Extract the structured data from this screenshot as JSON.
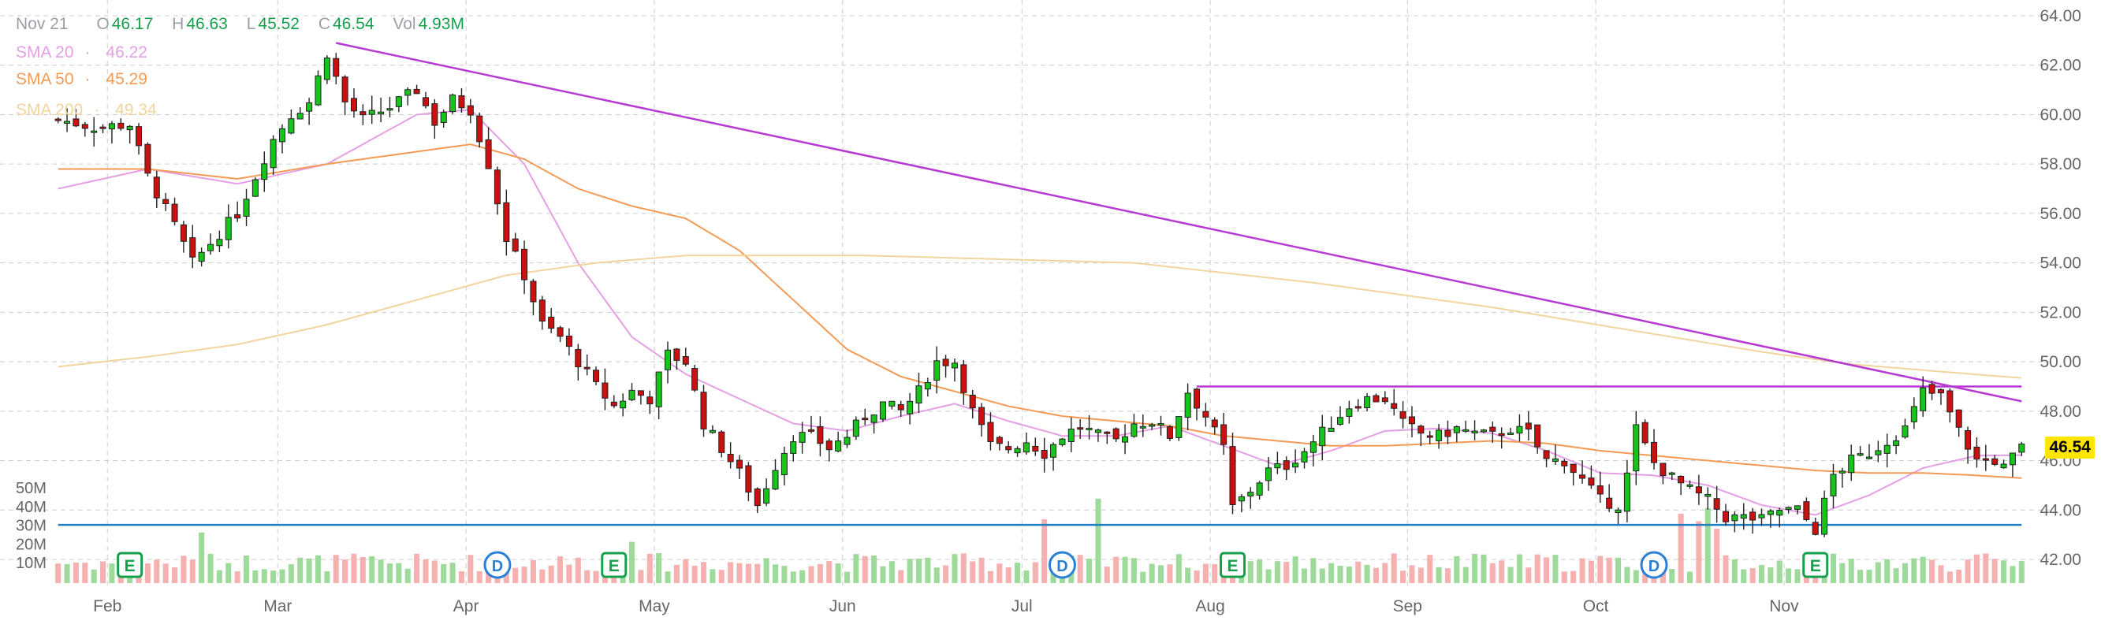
{
  "ohlc": {
    "date": "Nov 21",
    "o_label": "O",
    "o": "46.17",
    "h_label": "H",
    "h": "46.63",
    "l_label": "L",
    "l": "45.52",
    "c_label": "C",
    "c": "46.54",
    "vol_label": "Vol",
    "vol": "4.93M"
  },
  "sma": [
    {
      "label": "SMA 20",
      "value": "46.22",
      "color": "#e59fe4"
    },
    {
      "label": "SMA 50",
      "value": "45.29",
      "color": "#f39b55"
    },
    {
      "label": "SMA 200",
      "value": "49.34",
      "color": "#f2d49e"
    }
  ],
  "last_price": "46.54",
  "colors": {
    "up": "#17c41b",
    "down": "#cc1010",
    "vol_up": "#9edb9b",
    "vol_down": "#f6b0b0",
    "trend": "#b73ad3",
    "support": "#1e7dc2",
    "earn": "#17a04b",
    "div": "#2a7fd8",
    "grid": "#cccccc"
  },
  "chart_data": {
    "type": "candlestick",
    "y_ticks": [
      "64.00",
      "62.00",
      "60.00",
      "58.00",
      "56.00",
      "54.00",
      "52.00",
      "50.00",
      "48.00",
      "46.00",
      "44.00",
      "42.00"
    ],
    "ylim": [
      42,
      64
    ],
    "volume_ticks": [
      "50M",
      "40M",
      "30M",
      "20M",
      "10M"
    ],
    "x_months": [
      "Feb",
      "Mar",
      "Apr",
      "May",
      "Jun",
      "Jul",
      "Aug",
      "Sep",
      "Oct",
      "Nov"
    ],
    "n_bars": 220,
    "month_start_index": [
      6,
      25,
      46,
      67,
      88,
      108,
      129,
      151,
      172,
      193
    ],
    "events": [
      {
        "type": "E",
        "index": 8
      },
      {
        "type": "D",
        "index": 49
      },
      {
        "type": "E",
        "index": 62
      },
      {
        "type": "D",
        "index": 112
      },
      {
        "type": "E",
        "index": 131
      },
      {
        "type": "D",
        "index": 178
      },
      {
        "type": "E",
        "index": 196
      }
    ],
    "anchors": [
      [
        0,
        59.8
      ],
      [
        4,
        59.5
      ],
      [
        8,
        59.6
      ],
      [
        10,
        57.5
      ],
      [
        13,
        55.5
      ],
      [
        15,
        54
      ],
      [
        18,
        55.2
      ],
      [
        20,
        56
      ],
      [
        22,
        57.5
      ],
      [
        24,
        59
      ],
      [
        26,
        60
      ],
      [
        28,
        60.5
      ],
      [
        30,
        62.5
      ],
      [
        32,
        60.5
      ],
      [
        34,
        59.8
      ],
      [
        37,
        60.3
      ],
      [
        40,
        61
      ],
      [
        42,
        59.7
      ],
      [
        44,
        60.6
      ],
      [
        46,
        60.2
      ],
      [
        48,
        58
      ],
      [
        50,
        55
      ],
      [
        52,
        53.5
      ],
      [
        54,
        51.5
      ],
      [
        56,
        51
      ],
      [
        58,
        50
      ],
      [
        60,
        49
      ],
      [
        62,
        48.2
      ],
      [
        64,
        48.8
      ],
      [
        66,
        48.5
      ],
      [
        68,
        50.3
      ],
      [
        70,
        50
      ],
      [
        72,
        47.5
      ],
      [
        74,
        46.5
      ],
      [
        76,
        45.5
      ],
      [
        78,
        44.2
      ],
      [
        80,
        45.8
      ],
      [
        82,
        47
      ],
      [
        84,
        47
      ],
      [
        86,
        46.5
      ],
      [
        88,
        47
      ],
      [
        90,
        47.8
      ],
      [
        92,
        48.3
      ],
      [
        94,
        48
      ],
      [
        96,
        48.8
      ],
      [
        98,
        50
      ],
      [
        100,
        50
      ],
      [
        102,
        48
      ],
      [
        104,
        46.6
      ],
      [
        106,
        46.5
      ],
      [
        108,
        46.8
      ],
      [
        110,
        46.3
      ],
      [
        112,
        47
      ],
      [
        114,
        47.4
      ],
      [
        116,
        47
      ],
      [
        118,
        46.8
      ],
      [
        120,
        47.5
      ],
      [
        122,
        47.6
      ],
      [
        124,
        47
      ],
      [
        126,
        48.8
      ],
      [
        128,
        47.8
      ],
      [
        130,
        46.5
      ],
      [
        131,
        44.1
      ],
      [
        133,
        44.8
      ],
      [
        135,
        45.6
      ],
      [
        137,
        45.8
      ],
      [
        139,
        46.4
      ],
      [
        142,
        47.5
      ],
      [
        144,
        48.2
      ],
      [
        146,
        48.5
      ],
      [
        148,
        48.5
      ],
      [
        150,
        47.5
      ],
      [
        152,
        47.1
      ],
      [
        154,
        47
      ],
      [
        156,
        47.3
      ],
      [
        158,
        47.1
      ],
      [
        160,
        47
      ],
      [
        162,
        47.3
      ],
      [
        164,
        47.1
      ],
      [
        166,
        46
      ],
      [
        168,
        46
      ],
      [
        170,
        45.2
      ],
      [
        172,
        44.4
      ],
      [
        174,
        44.2
      ],
      [
        175,
        45.4
      ],
      [
        176,
        47.3
      ],
      [
        178,
        45.9
      ],
      [
        180,
        45.3
      ],
      [
        182,
        44.8
      ],
      [
        184,
        44.4
      ],
      [
        186,
        43.7
      ],
      [
        188,
        43.7
      ],
      [
        190,
        43.6
      ],
      [
        192,
        44
      ],
      [
        194,
        44
      ],
      [
        196,
        43.2
      ],
      [
        198,
        45.4
      ],
      [
        200,
        46
      ],
      [
        202,
        46.3
      ],
      [
        204,
        46.8
      ],
      [
        206,
        47.3
      ],
      [
        208,
        48.8
      ],
      [
        210,
        48.6
      ],
      [
        212,
        47.2
      ],
      [
        214,
        46
      ],
      [
        216,
        46
      ],
      [
        217,
        45.7
      ],
      [
        219,
        46.54
      ]
    ],
    "trendlines": [
      {
        "from": [
          31,
          62.9
        ],
        "to": [
          219,
          48.4
        ],
        "color": "trend"
      },
      {
        "from": [
          127,
          49.0
        ],
        "to": [
          219,
          49.0
        ],
        "color": "trend"
      },
      {
        "from": [
          0,
          43.4
        ],
        "to": [
          219,
          43.4
        ],
        "color": "support"
      }
    ],
    "sma_anchors": {
      "sma20": [
        [
          0,
          57
        ],
        [
          10,
          57.8
        ],
        [
          20,
          57.2
        ],
        [
          30,
          58
        ],
        [
          40,
          60
        ],
        [
          46,
          60.2
        ],
        [
          52,
          58
        ],
        [
          58,
          54
        ],
        [
          64,
          51
        ],
        [
          70,
          49.5
        ],
        [
          76,
          48.5
        ],
        [
          82,
          47.5
        ],
        [
          88,
          47.2
        ],
        [
          94,
          47.8
        ],
        [
          100,
          48.3
        ],
        [
          106,
          47.6
        ],
        [
          112,
          47
        ],
        [
          118,
          47
        ],
        [
          124,
          47.4
        ],
        [
          130,
          46.6
        ],
        [
          136,
          45.8
        ],
        [
          142,
          46.4
        ],
        [
          148,
          47.2
        ],
        [
          154,
          47.3
        ],
        [
          160,
          47.1
        ],
        [
          166,
          46.4
        ],
        [
          172,
          45.5
        ],
        [
          178,
          45.4
        ],
        [
          184,
          45
        ],
        [
          190,
          44.2
        ],
        [
          196,
          43.8
        ],
        [
          202,
          44.6
        ],
        [
          208,
          45.7
        ],
        [
          214,
          46.2
        ],
        [
          219,
          46.22
        ]
      ],
      "sma50": [
        [
          0,
          57.8
        ],
        [
          10,
          57.8
        ],
        [
          20,
          57.4
        ],
        [
          30,
          58
        ],
        [
          40,
          58.5
        ],
        [
          46,
          58.8
        ],
        [
          52,
          58.2
        ],
        [
          58,
          57
        ],
        [
          64,
          56.3
        ],
        [
          70,
          55.8
        ],
        [
          76,
          54.5
        ],
        [
          82,
          52.5
        ],
        [
          88,
          50.5
        ],
        [
          94,
          49.4
        ],
        [
          100,
          48.8
        ],
        [
          106,
          48.2
        ],
        [
          112,
          47.8
        ],
        [
          118,
          47.6
        ],
        [
          124,
          47.4
        ],
        [
          130,
          47
        ],
        [
          136,
          46.8
        ],
        [
          142,
          46.6
        ],
        [
          148,
          46.6
        ],
        [
          154,
          46.7
        ],
        [
          160,
          46.8
        ],
        [
          166,
          46.7
        ],
        [
          172,
          46.4
        ],
        [
          178,
          46.2
        ],
        [
          184,
          46
        ],
        [
          190,
          45.8
        ],
        [
          196,
          45.6
        ],
        [
          202,
          45.5
        ],
        [
          208,
          45.5
        ],
        [
          214,
          45.4
        ],
        [
          219,
          45.29
        ]
      ],
      "sma200": [
        [
          0,
          49.8
        ],
        [
          10,
          50.2
        ],
        [
          20,
          50.7
        ],
        [
          30,
          51.5
        ],
        [
          40,
          52.5
        ],
        [
          50,
          53.5
        ],
        [
          60,
          54
        ],
        [
          70,
          54.3
        ],
        [
          80,
          54.3
        ],
        [
          90,
          54.3
        ],
        [
          100,
          54.2
        ],
        [
          110,
          54.1
        ],
        [
          120,
          54
        ],
        [
          130,
          53.6
        ],
        [
          140,
          53.2
        ],
        [
          150,
          52.7
        ],
        [
          160,
          52.2
        ],
        [
          170,
          51.6
        ],
        [
          180,
          51
        ],
        [
          190,
          50.4
        ],
        [
          200,
          49.9
        ],
        [
          210,
          49.6
        ],
        [
          219,
          49.34
        ]
      ]
    },
    "volume_spikes": {
      "116": 45,
      "181": 37,
      "183": 33,
      "185": 29,
      "64": 22,
      "110": 34,
      "16": 27,
      "184": 40
    }
  }
}
